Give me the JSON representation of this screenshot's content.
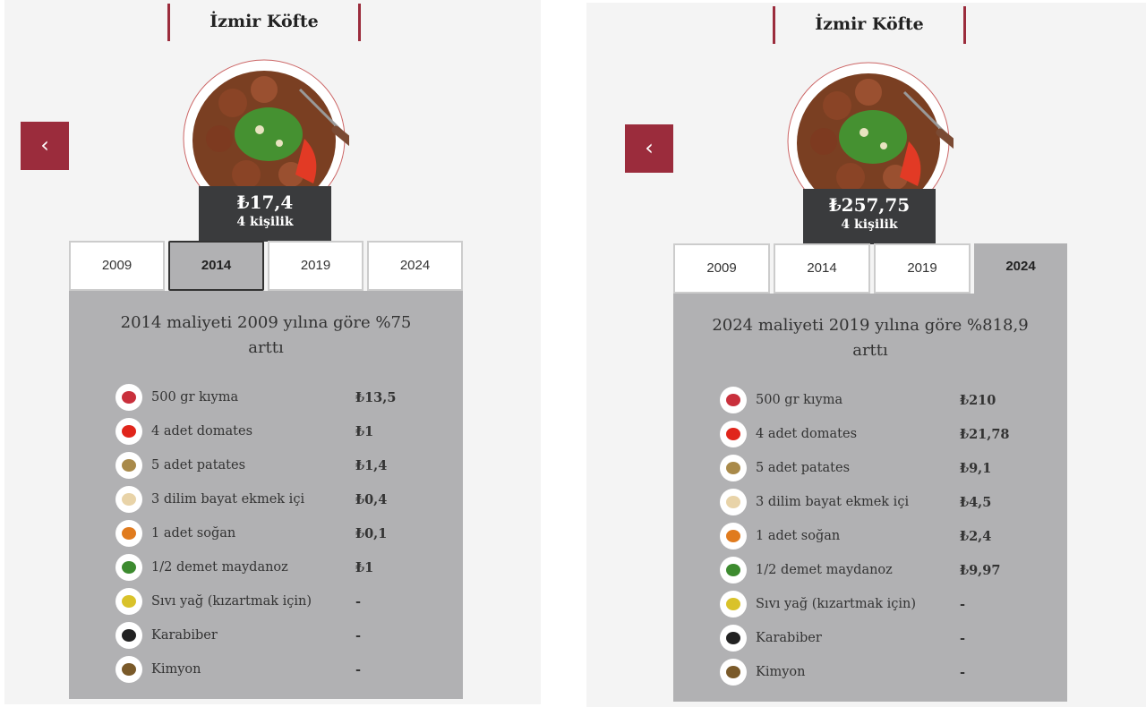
{
  "panels": [
    {
      "title": "İzmir Köfte",
      "back_icon": "chevron-left-icon",
      "price": "₺17,4",
      "servings": "4 kişilik",
      "tabs": [
        "2009",
        "2014",
        "2019",
        "2024"
      ],
      "active_tab": "2014",
      "headline": "2014 maliyeti 2009 yılına göre %75 arttı",
      "ingredients": [
        {
          "name": "500 gr kıyma",
          "price": "₺13,5",
          "icon": "meat-icon",
          "color": "#c9303c"
        },
        {
          "name": "4 adet domates",
          "price": "₺1",
          "icon": "tomato-icon",
          "color": "#e0251b"
        },
        {
          "name": "5 adet patates",
          "price": "₺1,4",
          "icon": "potato-icon",
          "color": "#a98a4a"
        },
        {
          "name": "3 dilim bayat ekmek içi",
          "price": "₺0,4",
          "icon": "bread-icon",
          "color": "#e8d3a8"
        },
        {
          "name": "1 adet soğan",
          "price": "₺0,1",
          "icon": "onion-icon",
          "color": "#e07b1e"
        },
        {
          "name": "1/2 demet maydanoz",
          "price": "₺1",
          "icon": "parsley-icon",
          "color": "#3d8b2f"
        },
        {
          "name": "Sıvı yağ (kızartmak için)",
          "price": "-",
          "icon": "oil-icon",
          "color": "#d9c22a"
        },
        {
          "name": "Karabiber",
          "price": "-",
          "icon": "pepper-icon",
          "color": "#222"
        },
        {
          "name": "Kimyon",
          "price": "-",
          "icon": "cumin-icon",
          "color": "#7a5a2a"
        }
      ]
    },
    {
      "title": "İzmir Köfte",
      "back_icon": "chevron-left-icon",
      "price": "₺257,75",
      "servings": "4 kişilik",
      "tabs": [
        "2009",
        "2014",
        "2019",
        "2024"
      ],
      "active_tab": "2024",
      "headline": "2024 maliyeti 2019 yılına göre %818,9 arttı",
      "ingredients": [
        {
          "name": "500 gr kıyma",
          "price": "₺210",
          "icon": "meat-icon",
          "color": "#c9303c"
        },
        {
          "name": "4 adet domates",
          "price": "₺21,78",
          "icon": "tomato-icon",
          "color": "#e0251b"
        },
        {
          "name": "5 adet patates",
          "price": "₺9,1",
          "icon": "potato-icon",
          "color": "#a98a4a"
        },
        {
          "name": "3 dilim bayat ekmek içi",
          "price": "₺4,5",
          "icon": "bread-icon",
          "color": "#e8d3a8"
        },
        {
          "name": "1 adet soğan",
          "price": "₺2,4",
          "icon": "onion-icon",
          "color": "#e07b1e"
        },
        {
          "name": "1/2 demet maydanoz",
          "price": "₺9,97",
          "icon": "parsley-icon",
          "color": "#3d8b2f"
        },
        {
          "name": "Sıvı yağ (kızartmak için)",
          "price": "-",
          "icon": "oil-icon",
          "color": "#d9c22a"
        },
        {
          "name": "Karabiber",
          "price": "-",
          "icon": "pepper-icon",
          "color": "#222"
        },
        {
          "name": "Kimyon",
          "price": "-",
          "icon": "cumin-icon",
          "color": "#7a5a2a"
        }
      ]
    }
  ]
}
